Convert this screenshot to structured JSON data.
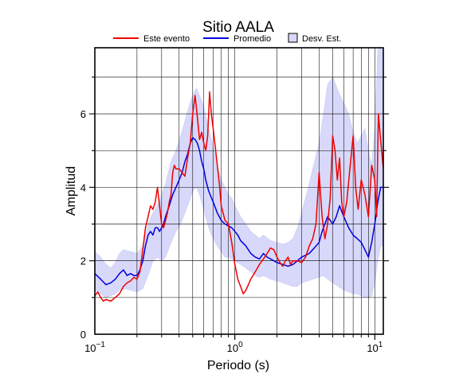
{
  "chart_data": {
    "type": "line",
    "title": "Sitio AALA",
    "xlabel": "Periodo (s)",
    "ylabel": "Amplitud",
    "xscale": "log",
    "xlim": [
      0.1,
      11.5
    ],
    "ylim": [
      0,
      7.8
    ],
    "y_ticks": [
      {
        "v": 0,
        "label": "0"
      },
      {
        "v": 2,
        "label": "2"
      },
      {
        "v": 4,
        "label": "4"
      },
      {
        "v": 6,
        "label": "6"
      }
    ],
    "x_ticks": [
      {
        "v": 0.1,
        "base": "10",
        "exp": "−1"
      },
      {
        "v": 1,
        "base": "10",
        "exp": "0"
      },
      {
        "v": 10,
        "base": "10",
        "exp": "1"
      }
    ],
    "grid": true,
    "legend_position": "top-center",
    "colors": {
      "event": "#ee0000",
      "mean": "#0000dd",
      "band": "#d8d8fa",
      "band_edge": "#c8c8f0"
    },
    "legend": [
      {
        "kind": "line",
        "label": "Este evento",
        "color": "#ee0000"
      },
      {
        "kind": "line",
        "label": "Promedio",
        "color": "#0000dd"
      },
      {
        "kind": "box",
        "label": "Desv. Est.",
        "color": "#d8d8fa"
      }
    ],
    "series": [
      {
        "name": "Este evento",
        "color": "#ee0000",
        "x": [
          0.1,
          0.105,
          0.11,
          0.115,
          0.12,
          0.13,
          0.14,
          0.15,
          0.16,
          0.17,
          0.18,
          0.19,
          0.2,
          0.21,
          0.22,
          0.23,
          0.24,
          0.25,
          0.26,
          0.27,
          0.28,
          0.29,
          0.3,
          0.31,
          0.32,
          0.33,
          0.34,
          0.35,
          0.36,
          0.37,
          0.38,
          0.4,
          0.42,
          0.44,
          0.46,
          0.48,
          0.5,
          0.52,
          0.54,
          0.56,
          0.58,
          0.6,
          0.62,
          0.64,
          0.66,
          0.68,
          0.7,
          0.72,
          0.75,
          0.78,
          0.8,
          0.85,
          0.9,
          0.95,
          1.0,
          1.05,
          1.1,
          1.15,
          1.2,
          1.25,
          1.3,
          1.4,
          1.5,
          1.6,
          1.7,
          1.8,
          1.9,
          2.0,
          2.1,
          2.2,
          2.3,
          2.4,
          2.5,
          2.6,
          2.8,
          3.0,
          3.2,
          3.4,
          3.6,
          3.8,
          4.0,
          4.2,
          4.4,
          4.6,
          4.8,
          5.0,
          5.2,
          5.4,
          5.6,
          5.8,
          6.0,
          6.3,
          6.6,
          7.0,
          7.3,
          7.6,
          8.0,
          8.5,
          9.0,
          9.5,
          10.0,
          10.3,
          10.6,
          11.0,
          11.5
        ],
        "values": [
          1.05,
          1.15,
          1.0,
          0.9,
          0.95,
          0.9,
          1.0,
          1.1,
          1.3,
          1.4,
          1.45,
          1.55,
          1.5,
          1.7,
          2.3,
          2.9,
          3.2,
          3.5,
          3.4,
          3.6,
          4.0,
          3.5,
          3.0,
          2.9,
          3.1,
          3.3,
          3.6,
          3.8,
          4.4,
          4.6,
          4.5,
          4.5,
          4.4,
          4.3,
          4.8,
          5.2,
          6.0,
          6.5,
          5.9,
          5.3,
          5.5,
          5.2,
          5.0,
          5.4,
          6.6,
          6.0,
          5.6,
          5.2,
          4.6,
          4.0,
          3.5,
          3.1,
          3.0,
          2.5,
          1.9,
          1.5,
          1.3,
          1.1,
          1.2,
          1.35,
          1.5,
          1.7,
          1.9,
          2.05,
          2.2,
          2.35,
          2.3,
          2.1,
          1.95,
          1.85,
          2.0,
          2.1,
          1.9,
          2.0,
          2.0,
          1.95,
          2.1,
          2.4,
          2.6,
          3.0,
          4.4,
          3.2,
          2.6,
          3.0,
          3.7,
          5.4,
          5.0,
          4.2,
          4.8,
          3.6,
          3.2,
          3.6,
          4.4,
          5.4,
          4.0,
          3.4,
          4.2,
          3.8,
          3.2,
          4.6,
          4.2,
          3.2,
          6.0,
          5.3,
          4.5
        ]
      },
      {
        "name": "Promedio",
        "color": "#0000dd",
        "x": [
          0.1,
          0.11,
          0.12,
          0.13,
          0.14,
          0.15,
          0.16,
          0.17,
          0.18,
          0.19,
          0.2,
          0.21,
          0.22,
          0.23,
          0.24,
          0.25,
          0.26,
          0.27,
          0.28,
          0.29,
          0.3,
          0.31,
          0.32,
          0.34,
          0.36,
          0.38,
          0.4,
          0.42,
          0.44,
          0.46,
          0.48,
          0.5,
          0.52,
          0.54,
          0.56,
          0.58,
          0.6,
          0.62,
          0.65,
          0.7,
          0.75,
          0.8,
          0.85,
          0.9,
          0.95,
          1.0,
          1.05,
          1.1,
          1.2,
          1.3,
          1.4,
          1.5,
          1.6,
          1.7,
          1.8,
          1.9,
          2.0,
          2.2,
          2.4,
          2.6,
          2.8,
          3.0,
          3.2,
          3.4,
          3.6,
          3.8,
          4.0,
          4.2,
          4.4,
          4.6,
          4.8,
          5.0,
          5.3,
          5.6,
          6.0,
          6.5,
          7.0,
          7.5,
          8.0,
          8.5,
          9.0,
          9.5,
          10.0,
          10.5,
          11.0,
          11.5
        ],
        "values": [
          1.65,
          1.5,
          1.35,
          1.4,
          1.5,
          1.65,
          1.75,
          1.6,
          1.65,
          1.6,
          1.6,
          1.75,
          2.0,
          2.4,
          2.7,
          2.8,
          2.7,
          2.9,
          2.9,
          2.8,
          2.9,
          3.0,
          3.2,
          3.5,
          3.8,
          4.0,
          4.2,
          4.4,
          4.7,
          4.9,
          5.2,
          5.35,
          5.3,
          5.2,
          5.0,
          4.7,
          4.5,
          4.2,
          3.9,
          3.6,
          3.3,
          3.1,
          3.0,
          2.95,
          2.9,
          2.8,
          2.7,
          2.55,
          2.4,
          2.2,
          2.1,
          2.05,
          2.2,
          2.1,
          2.05,
          2.0,
          1.95,
          1.9,
          1.85,
          1.9,
          2.0,
          2.1,
          2.15,
          2.2,
          2.3,
          2.4,
          2.5,
          2.8,
          3.0,
          3.2,
          3.1,
          3.0,
          3.2,
          3.5,
          3.2,
          2.9,
          2.7,
          2.6,
          2.5,
          2.3,
          2.1,
          2.5,
          3.0,
          3.6,
          4.0,
          4.0
        ]
      },
      {
        "name": "Desv. Est.",
        "type": "band",
        "x": [
          0.1,
          0.11,
          0.12,
          0.13,
          0.14,
          0.15,
          0.16,
          0.18,
          0.2,
          0.22,
          0.24,
          0.26,
          0.28,
          0.3,
          0.32,
          0.35,
          0.38,
          0.41,
          0.44,
          0.47,
          0.5,
          0.53,
          0.56,
          0.6,
          0.65,
          0.7,
          0.75,
          0.8,
          0.85,
          0.9,
          0.95,
          1.0,
          1.1,
          1.2,
          1.3,
          1.4,
          1.5,
          1.6,
          1.8,
          2.0,
          2.2,
          2.4,
          2.6,
          2.8,
          3.0,
          3.3,
          3.6,
          4.0,
          4.3,
          4.6,
          5.0,
          5.5,
          6.0,
          6.5,
          7.0,
          7.5,
          8.0,
          8.5,
          9.0,
          9.5,
          10.0,
          10.5,
          11.0,
          11.5
        ],
        "upper": [
          2.25,
          2.1,
          1.9,
          1.8,
          1.95,
          2.2,
          2.3,
          2.25,
          2.2,
          2.4,
          3.0,
          3.3,
          3.5,
          3.8,
          4.1,
          4.7,
          5.0,
          5.4,
          5.8,
          6.2,
          6.5,
          6.7,
          6.5,
          6.2,
          5.6,
          5.1,
          4.6,
          4.2,
          4.0,
          3.8,
          3.7,
          3.5,
          3.2,
          3.0,
          2.8,
          2.7,
          2.6,
          2.7,
          2.55,
          2.5,
          2.45,
          2.5,
          2.6,
          2.9,
          3.3,
          3.9,
          4.5,
          5.2,
          6.0,
          6.8,
          7.0,
          6.6,
          6.3,
          6.0,
          5.5,
          5.2,
          5.4,
          5.6,
          5.0,
          4.6,
          5.6,
          7.8,
          7.8,
          7.8
        ],
        "lower": [
          1.2,
          1.1,
          1.0,
          1.05,
          1.1,
          1.2,
          1.25,
          1.2,
          1.15,
          1.25,
          1.6,
          2.0,
          2.1,
          2.0,
          2.1,
          2.5,
          2.8,
          3.0,
          3.3,
          3.6,
          3.9,
          4.0,
          3.8,
          3.4,
          2.9,
          2.6,
          2.4,
          2.25,
          2.1,
          2.1,
          2.05,
          2.0,
          1.9,
          1.8,
          1.7,
          1.6,
          1.55,
          1.6,
          1.5,
          1.45,
          1.4,
          1.35,
          1.3,
          1.3,
          1.4,
          1.45,
          1.5,
          1.55,
          1.6,
          1.5,
          1.4,
          1.3,
          1.2,
          1.15,
          1.1,
          1.1,
          1.05,
          1.0,
          1.0,
          1.05,
          1.4,
          2.0,
          2.4,
          2.4
        ]
      }
    ]
  }
}
